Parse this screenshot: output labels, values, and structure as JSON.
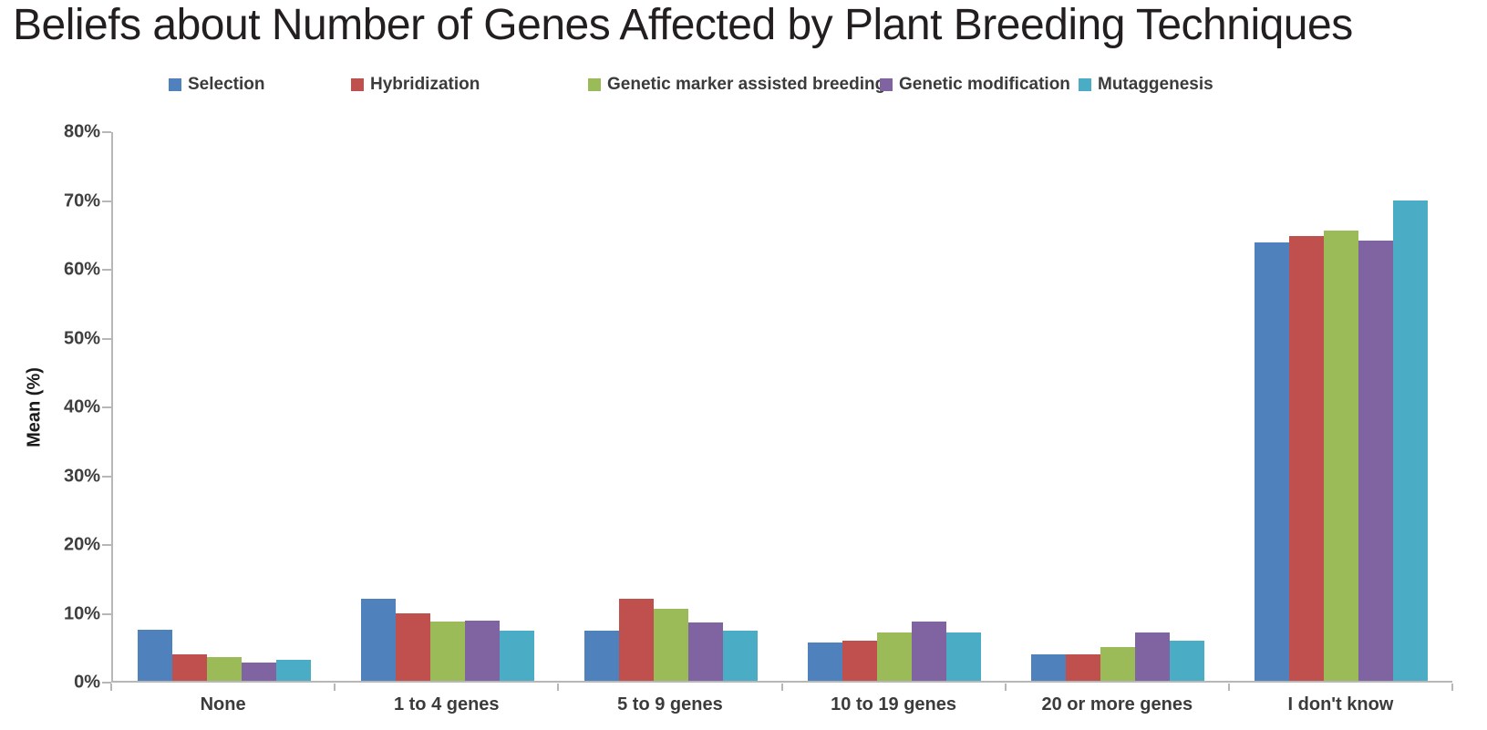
{
  "chart_data": {
    "type": "bar",
    "title": "Beliefs about Number of Genes Affected by Plant Breeding Techniques",
    "ylabel": "Mean (%)",
    "ylim": [
      0,
      80
    ],
    "ytick_step": 10,
    "ytick_labels": [
      "0%",
      "10%",
      "20%",
      "30%",
      "40%",
      "50%",
      "60%",
      "70%",
      "80%"
    ],
    "grid": false,
    "legend_position": "top",
    "categories": [
      "None",
      "1 to 4 genes",
      "5 to 9 genes",
      "10 to 19 genes",
      "20 or more genes",
      "I don't know"
    ],
    "series": [
      {
        "name": "Selection",
        "color": "#4F81BD",
        "values": [
          7.5,
          11.9,
          7.3,
          5.6,
          3.9,
          63.9
        ]
      },
      {
        "name": "Hybridization",
        "color": "#C0504D",
        "values": [
          3.9,
          9.8,
          11.9,
          5.9,
          3.9,
          64.9
        ]
      },
      {
        "name": "Genetic marker assisted breeding",
        "color": "#9BBB59",
        "values": [
          3.5,
          8.6,
          10.5,
          7.1,
          4.9,
          65.6
        ]
      },
      {
        "name": "Genetic modification",
        "color": "#8064A2",
        "values": [
          2.6,
          8.8,
          8.5,
          8.7,
          7.1,
          64.2
        ]
      },
      {
        "name": "Mutaggenesis",
        "color": "#4BACC6",
        "values": [
          3.0,
          7.3,
          7.3,
          7.0,
          5.8,
          70.0
        ]
      }
    ],
    "axis_color": "#b7b7b7"
  }
}
